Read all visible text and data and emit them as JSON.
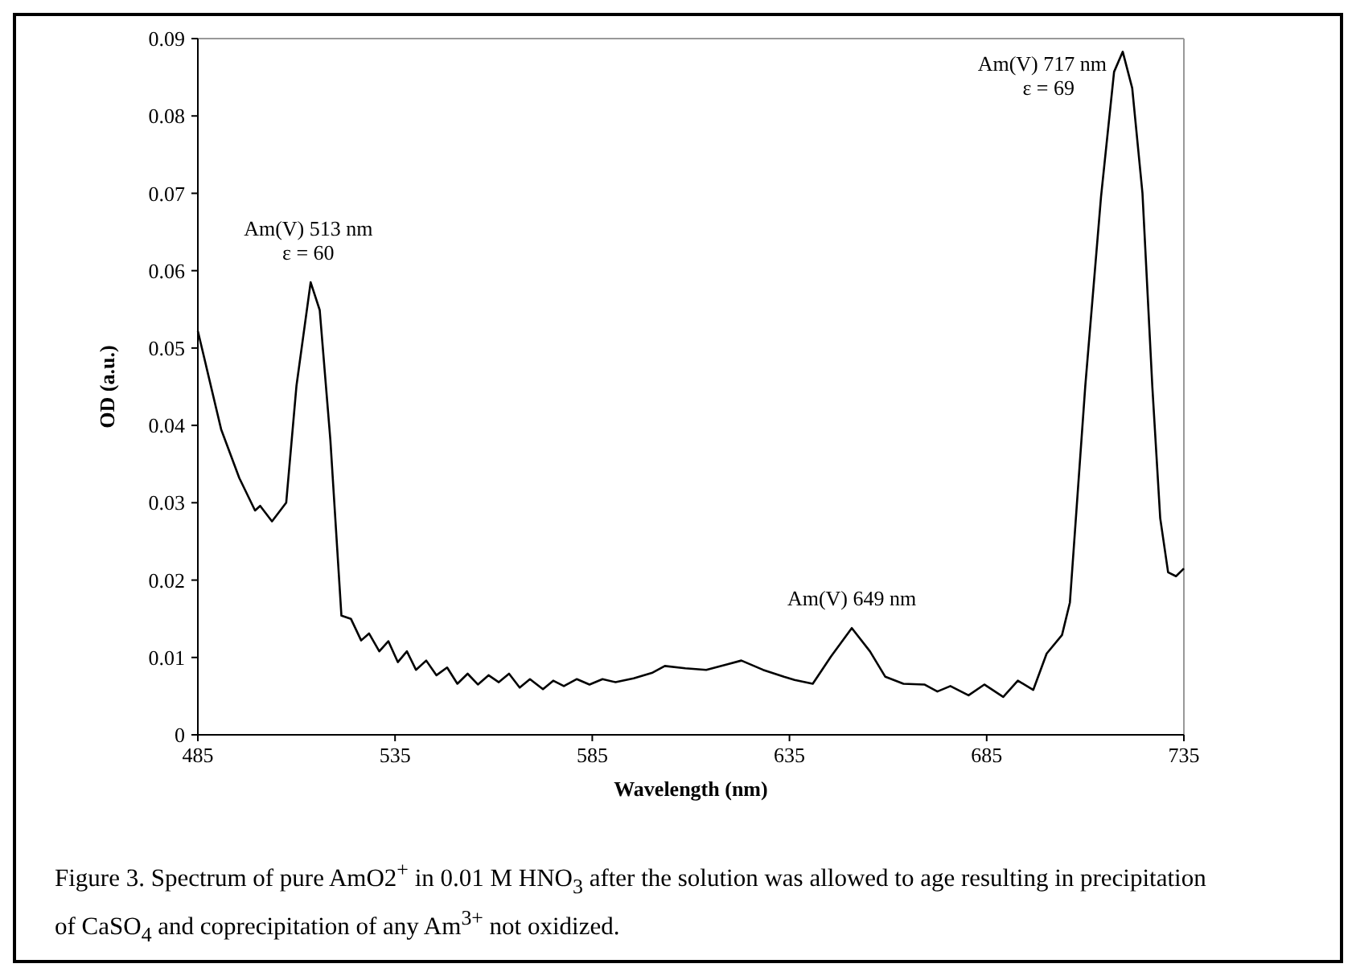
{
  "chart_data": {
    "type": "line",
    "xlabel": "Wavelength (nm)",
    "ylabel": "OD (a.u.)",
    "xlim": [
      485,
      735
    ],
    "xticks": [
      485,
      535,
      585,
      635,
      685,
      735
    ],
    "ylim": [
      0,
      0.09
    ],
    "yticks": [
      0,
      0.01,
      0.02,
      0.03,
      0.04,
      0.05,
      0.06,
      0.07,
      0.08,
      0.09
    ],
    "grid": false,
    "series": [
      {
        "color": "#000000",
        "x": [
          485,
          490.9,
          495.5,
          499.5,
          500.8,
          503.8,
          507.4,
          510,
          513.6,
          515.9,
          518.6,
          521.4,
          523.8,
          526.4,
          528.4,
          531,
          533.3,
          535.7,
          538,
          540.3,
          542.9,
          545.5,
          548.2,
          550.8,
          553.4,
          556,
          558.7,
          561.3,
          563.9,
          566.6,
          569.2,
          572.5,
          575.1,
          577.8,
          581.1,
          584.3,
          587.6,
          590.9,
          595.5,
          600.1,
          603.4,
          608.6,
          613.9,
          619.1,
          622.8,
          628.3,
          633.6,
          636.3,
          640.9,
          645.5,
          650.8,
          655.4,
          659.3,
          663.9,
          669.2,
          672.5,
          675.8,
          680.4,
          684.4,
          689.2,
          692.9,
          696.8,
          700.2,
          704.1,
          706.1,
          710,
          714,
          717.3,
          719.5,
          721.9,
          724.5,
          727,
          729,
          731,
          733,
          735
        ],
        "values": [
          0.0522,
          0.0395,
          0.0332,
          0.029,
          0.0296,
          0.0276,
          0.03,
          0.0451,
          0.0585,
          0.0549,
          0.0381,
          0.0154,
          0.015,
          0.0122,
          0.0131,
          0.0108,
          0.0121,
          0.0094,
          0.0108,
          0.0084,
          0.0096,
          0.0077,
          0.0087,
          0.0066,
          0.0079,
          0.0065,
          0.0077,
          0.0068,
          0.0079,
          0.0061,
          0.0072,
          0.0059,
          0.007,
          0.0063,
          0.0072,
          0.0065,
          0.0072,
          0.0068,
          0.0073,
          0.008,
          0.0089,
          0.0086,
          0.0084,
          0.0091,
          0.0096,
          0.0084,
          0.0075,
          0.0071,
          0.0066,
          0.0101,
          0.0138,
          0.0108,
          0.0075,
          0.0066,
          0.0065,
          0.0056,
          0.0063,
          0.0051,
          0.0065,
          0.0049,
          0.007,
          0.0058,
          0.0105,
          0.0129,
          0.0171,
          0.0451,
          0.0696,
          0.0857,
          0.0883,
          0.0836,
          0.07,
          0.045,
          0.028,
          0.021,
          0.0205,
          0.0215
        ]
      }
    ],
    "annotations": [
      {
        "text": "Am(V) 513 nm\nε = 60",
        "x": 513,
        "y": 0.0585
      },
      {
        "text": "Am(V) 649 nm",
        "x": 650.8,
        "y": 0.0138
      },
      {
        "text": "Am(V) 717 nm\nε = 69",
        "x": 719.5,
        "y": 0.0883
      },
      "Figure 3. Spectrum of pure AmO2$^{+}$ in 0.01 M HNO$_{3}$ after the solution was allowed to age resulting in precipitation of CaSO$_{4}$ and coprecipitation of any Am$^{3+}$ not oxidized."
    ]
  }
}
